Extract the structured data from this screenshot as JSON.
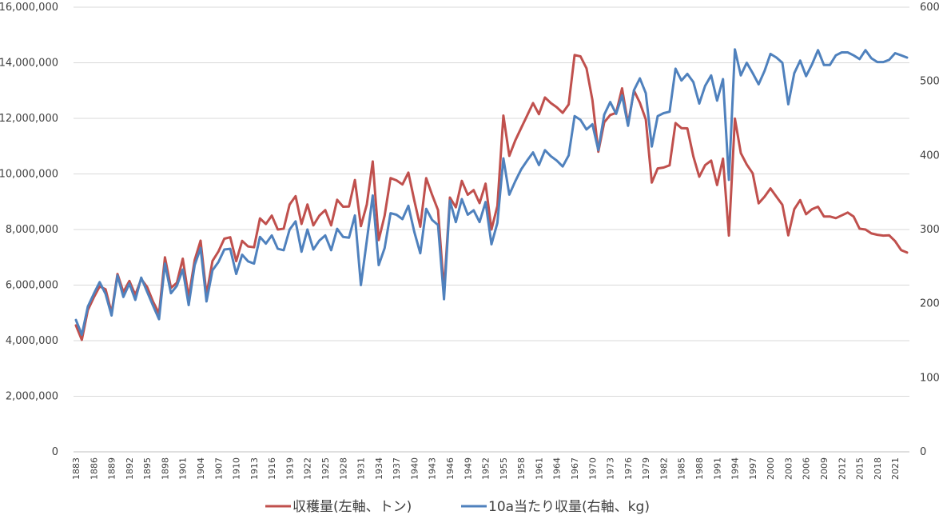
{
  "chart_data": {
    "type": "line",
    "x": [
      1883,
      1884,
      1885,
      1886,
      1887,
      1888,
      1889,
      1890,
      1891,
      1892,
      1893,
      1894,
      1895,
      1896,
      1897,
      1898,
      1899,
      1900,
      1901,
      1902,
      1903,
      1904,
      1905,
      1906,
      1907,
      1908,
      1909,
      1910,
      1911,
      1912,
      1913,
      1914,
      1915,
      1916,
      1917,
      1918,
      1919,
      1920,
      1921,
      1922,
      1923,
      1924,
      1925,
      1926,
      1927,
      1928,
      1929,
      1930,
      1931,
      1932,
      1933,
      1934,
      1935,
      1936,
      1937,
      1938,
      1939,
      1940,
      1941,
      1942,
      1943,
      1944,
      1945,
      1946,
      1947,
      1948,
      1949,
      1950,
      1951,
      1952,
      1953,
      1954,
      1955,
      1956,
      1957,
      1958,
      1959,
      1960,
      1961,
      1962,
      1963,
      1964,
      1965,
      1966,
      1967,
      1968,
      1969,
      1970,
      1971,
      1972,
      1973,
      1974,
      1975,
      1976,
      1977,
      1978,
      1979,
      1980,
      1981,
      1982,
      1983,
      1984,
      1985,
      1986,
      1987,
      1988,
      1989,
      1990,
      1991,
      1992,
      1993,
      1994,
      1995,
      1996,
      1997,
      1998,
      1999,
      2000,
      2001,
      2002,
      2003,
      2004,
      2005,
      2006,
      2007,
      2008,
      2009,
      2010,
      2011,
      2012,
      2013,
      2014,
      2015,
      2016,
      2017,
      2018,
      2019,
      2020,
      2021,
      2022,
      2023
    ],
    "x_tick_labels": [
      "1883",
      "1886",
      "1889",
      "1892",
      "1895",
      "1898",
      "1901",
      "1904",
      "1907",
      "1910",
      "1913",
      "1916",
      "1919",
      "1922",
      "1925",
      "1928",
      "1931",
      "1934",
      "1937",
      "1940",
      "1943",
      "1946",
      "1949",
      "1952",
      "1955",
      "1958",
      "1961",
      "1964",
      "1967",
      "1970",
      "1973",
      "1976",
      "1979",
      "1982",
      "1985",
      "1988",
      "1991",
      "1994",
      "1997",
      "2000",
      "2003",
      "2006",
      "2009",
      "2012",
      "2015",
      "2018",
      "2021"
    ],
    "y_left": {
      "min": 0,
      "max": 16000000,
      "ticks": [
        "0",
        "2,000,000",
        "4,000,000",
        "6,000,000",
        "8,000,000",
        "10,000,000",
        "12,000,000",
        "14,000,000",
        "16,000,000"
      ]
    },
    "y_right": {
      "min": 0,
      "max": 600,
      "ticks": [
        "0",
        "100",
        "200",
        "300",
        "400",
        "500",
        "600"
      ]
    },
    "grid": "horizontal",
    "legend_position": "bottom",
    "series": [
      {
        "name": "収穫量(左軸、トン)",
        "axis": "left",
        "color": "#c0504d",
        "values": [
          4550000,
          4030000,
          5100000,
          5550000,
          5950000,
          5850000,
          5000000,
          6400000,
          5750000,
          6150000,
          5650000,
          6220000,
          5930000,
          5400000,
          4980000,
          7000000,
          5900000,
          6080000,
          6950000,
          5550000,
          6900000,
          7600000,
          5650000,
          6870000,
          7210000,
          7670000,
          7720000,
          6860000,
          7590000,
          7390000,
          7360000,
          8400000,
          8200000,
          8500000,
          8000000,
          8030000,
          8900000,
          9200000,
          8200000,
          8900000,
          8150000,
          8500000,
          8700000,
          8150000,
          9070000,
          8820000,
          8830000,
          9780000,
          8120000,
          8900000,
          10450000,
          7620000,
          8500000,
          9850000,
          9770000,
          9620000,
          10050000,
          9050000,
          8100000,
          9850000,
          9250000,
          8700000,
          5800000,
          9150000,
          8800000,
          9750000,
          9250000,
          9420000,
          8950000,
          9650000,
          8000000,
          8850000,
          12100000,
          10650000,
          11200000,
          11650000,
          12100000,
          12550000,
          12150000,
          12750000,
          12550000,
          12400000,
          12200000,
          12500000,
          14280000,
          14230000,
          13800000,
          12660000,
          10800000,
          11860000,
          12120000,
          12200000,
          13080000,
          11800000,
          13000000,
          12560000,
          11960000,
          9690000,
          10200000,
          10230000,
          10310000,
          11830000,
          11650000,
          11640000,
          10630000,
          9900000,
          10320000,
          10480000,
          9600000,
          10550000,
          7780000,
          11990000,
          10750000,
          10340000,
          10020000,
          8940000,
          9180000,
          9480000,
          9180000,
          8890000,
          7790000,
          8730000,
          9060000,
          8550000,
          8730000,
          8820000,
          8470000,
          8470000,
          8410000,
          8510000,
          8610000,
          8470000,
          8030000,
          8000000,
          7860000,
          7810000,
          7780000,
          7790000,
          7580000,
          7260000,
          7170000
        ]
      },
      {
        "name": "10a当たり収量(右軸、kg)",
        "axis": "right",
        "color": "#4f81bd",
        "values": [
          178,
          158,
          196,
          213,
          229,
          213,
          184,
          238,
          209,
          227,
          205,
          235,
          216,
          197,
          179,
          254,
          214,
          224,
          246,
          198,
          252,
          275,
          203,
          245,
          256,
          273,
          274,
          240,
          266,
          257,
          254,
          290,
          281,
          292,
          274,
          272,
          300,
          311,
          270,
          300,
          273,
          285,
          292,
          272,
          301,
          290,
          289,
          319,
          225,
          285,
          346,
          252,
          275,
          322,
          320,
          314,
          332,
          297,
          268,
          328,
          313,
          306,
          206,
          339,
          310,
          341,
          320,
          326,
          310,
          337,
          280,
          309,
          396,
          347,
          365,
          381,
          393,
          404,
          387,
          407,
          399,
          393,
          385,
          400,
          453,
          448,
          435,
          442,
          407,
          455,
          472,
          456,
          481,
          440,
          488,
          504,
          484,
          412,
          453,
          457,
          459,
          517,
          501,
          510,
          499,
          470,
          494,
          508,
          474,
          503,
          367,
          543,
          508,
          525,
          511,
          496,
          514,
          537,
          532,
          525,
          469,
          511,
          528,
          507,
          523,
          542,
          522,
          522,
          535,
          539,
          539,
          535,
          530,
          542,
          531,
          526,
          526,
          529,
          538,
          535,
          532
        ]
      }
    ]
  }
}
